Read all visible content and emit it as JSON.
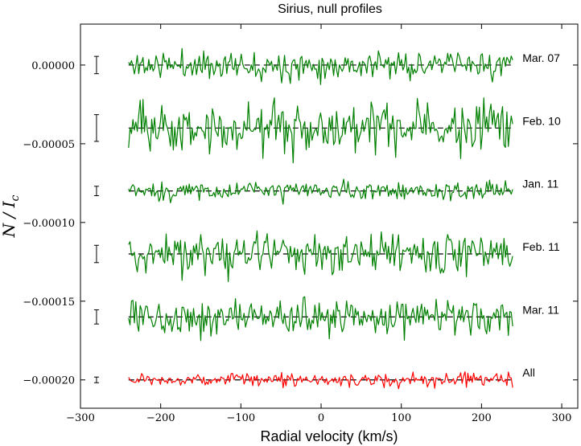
{
  "chart_data": {
    "type": "line",
    "title": "Sirius, null profiles",
    "xlabel": "Radial velocity (km/s)",
    "ylabel": "N / I_c",
    "ylabel_parts": {
      "main": "N / I",
      "sub": "c"
    },
    "xlim": [
      -300,
      320
    ],
    "ylim": [
      -0.000218,
      2.6e-05
    ],
    "x_ticks": [
      -300,
      -200,
      -100,
      0,
      100,
      200,
      300
    ],
    "y_ticks": [
      0.0,
      -5e-05,
      -0.0001,
      -0.00015,
      -0.0002
    ],
    "x_tick_labels": [
      "−300",
      "−200",
      "−100",
      "0",
      "100",
      "200",
      "300"
    ],
    "y_tick_labels": [
      "0.00000",
      "−0.00005",
      "−0.00010",
      "−0.00015",
      "−0.00020"
    ],
    "velocity_range": [
      -240,
      240
    ],
    "velocity_step": 1.8,
    "error_bar_x": -280,
    "series": [
      {
        "name": "Mar. 07",
        "offset": 0.0,
        "noise_amp": 4.3e-06,
        "error_halfwidth": 5.5e-06,
        "color": "#008000",
        "seed": 11
      },
      {
        "name": "Feb. 10",
        "offset": -4e-05,
        "noise_amp": 8.2e-06,
        "error_halfwidth": 8.5e-06,
        "color": "#008000",
        "seed": 23
      },
      {
        "name": "Jan. 11",
        "offset": -8e-05,
        "noise_amp": 3e-06,
        "error_halfwidth": 3e-06,
        "color": "#008000",
        "seed": 37
      },
      {
        "name": "Feb. 11",
        "offset": -0.00012,
        "noise_amp": 6.5e-06,
        "error_halfwidth": 5.5e-06,
        "color": "#008000",
        "seed": 41
      },
      {
        "name": "Mar. 11",
        "offset": -0.00016,
        "noise_amp": 5.5e-06,
        "error_halfwidth": 4.5e-06,
        "color": "#008000",
        "seed": 53
      },
      {
        "name": "All",
        "offset": -0.0002,
        "noise_amp": 2.2e-06,
        "error_halfwidth": 1.8e-06,
        "color": "#ff0000",
        "seed": 67
      }
    ],
    "reference_line_style": "black dashed",
    "grid": false,
    "legend": "labels at right end of each profile"
  }
}
